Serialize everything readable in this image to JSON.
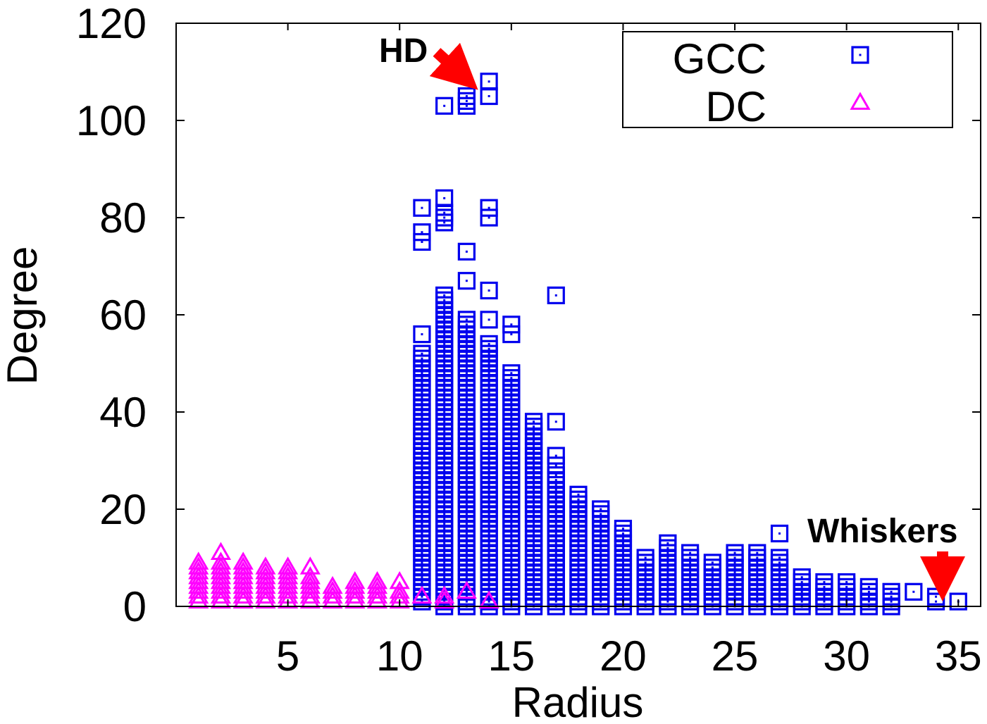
{
  "chart_data": {
    "type": "scatter",
    "title": "",
    "xlabel": "Radius",
    "ylabel": "Degree",
    "xlim": [
      0,
      36
    ],
    "ylim": [
      0,
      120
    ],
    "xticks": [
      5,
      10,
      15,
      20,
      25,
      30,
      35
    ],
    "yticks": [
      0,
      20,
      40,
      60,
      80,
      100,
      120
    ],
    "legend": {
      "position": "top-right",
      "entries": [
        "GCC",
        "DC"
      ]
    },
    "annotations": [
      {
        "id": "hd",
        "text": "HD",
        "points_to": [
          13.5,
          108
        ]
      },
      {
        "id": "whiskers",
        "text": "Whiskers",
        "points_to": [
          35,
          1
        ]
      }
    ],
    "series": [
      {
        "name": "GCC",
        "marker": "square",
        "color": "#0000ee",
        "columns": [
          {
            "x": 11,
            "min": 1,
            "max": 52,
            "extra": [
              56,
              75,
              77,
              82
            ]
          },
          {
            "x": 12,
            "min": 0,
            "max": 64,
            "extra": [
              79,
              80,
              81,
              84,
              103
            ]
          },
          {
            "x": 13,
            "min": 0,
            "max": 59,
            "extra": [
              67,
              73,
              103,
              104,
              105
            ]
          },
          {
            "x": 14,
            "min": 0,
            "max": 54,
            "extra": [
              59,
              65,
              80,
              82,
              105,
              108
            ]
          },
          {
            "x": 15,
            "min": 0,
            "max": 48,
            "extra": [
              56,
              58
            ]
          },
          {
            "x": 16,
            "min": 0,
            "max": 38
          },
          {
            "x": 17,
            "min": 0,
            "max": 27,
            "extra": [
              29,
              31,
              38,
              64
            ]
          },
          {
            "x": 18,
            "min": 0,
            "max": 23
          },
          {
            "x": 19,
            "min": 0,
            "max": 20
          },
          {
            "x": 20,
            "min": 0,
            "max": 16
          },
          {
            "x": 21,
            "min": 0,
            "max": 10
          },
          {
            "x": 22,
            "min": 0,
            "max": 13
          },
          {
            "x": 23,
            "min": 0,
            "max": 11
          },
          {
            "x": 24,
            "min": 0,
            "max": 9
          },
          {
            "x": 25,
            "min": 0,
            "max": 11
          },
          {
            "x": 26,
            "min": 0,
            "max": 11
          },
          {
            "x": 27,
            "min": 0,
            "max": 10,
            "extra": [
              15
            ]
          },
          {
            "x": 28,
            "min": 0,
            "max": 6
          },
          {
            "x": 29,
            "min": 0,
            "max": 5
          },
          {
            "x": 30,
            "min": 0,
            "max": 5
          },
          {
            "x": 31,
            "min": 0,
            "max": 4
          },
          {
            "x": 32,
            "min": 0,
            "max": 3
          },
          {
            "x": 33,
            "min": 3,
            "max": 3
          },
          {
            "x": 34,
            "min": 1,
            "max": 2
          },
          {
            "x": 35,
            "min": 1,
            "max": 1
          }
        ]
      },
      {
        "name": "DC",
        "marker": "triangle",
        "color": "#ff00ff",
        "columns": [
          {
            "x": 1,
            "min": 1,
            "max": 9
          },
          {
            "x": 2,
            "min": 1,
            "max": 9,
            "extra": [
              11
            ]
          },
          {
            "x": 3,
            "min": 1,
            "max": 9
          },
          {
            "x": 4,
            "min": 1,
            "max": 8
          },
          {
            "x": 5,
            "min": 1,
            "max": 8
          },
          {
            "x": 6,
            "min": 1,
            "max": 6,
            "extra": [
              8
            ]
          },
          {
            "x": 7,
            "min": 1,
            "max": 4
          },
          {
            "x": 8,
            "min": 1,
            "max": 5
          },
          {
            "x": 9,
            "min": 1,
            "max": 5
          },
          {
            "x": 10,
            "min": 1,
            "max": 3,
            "extra": [
              5
            ]
          },
          {
            "x": 11,
            "min": 2,
            "max": 2
          },
          {
            "x": 12,
            "min": 1,
            "max": 2
          },
          {
            "x": 13,
            "min": 3,
            "max": 3
          },
          {
            "x": 14,
            "min": 1,
            "max": 1
          }
        ]
      }
    ]
  }
}
